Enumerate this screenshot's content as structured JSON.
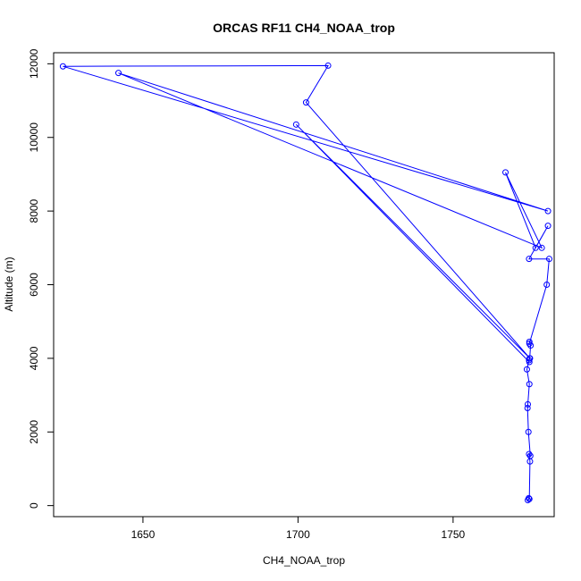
{
  "chart_data": {
    "type": "line",
    "title": "ORCAS RF11 CH4_NOAA_trop",
    "xlabel": "CH4_NOAA_trop",
    "ylabel": "Altitude (m)",
    "xlim": [
      1621.2,
      1782.6
    ],
    "ylim": [
      -300,
      12300
    ],
    "xticks": [
      1650,
      1700,
      1750
    ],
    "yticks": [
      0,
      2000,
      4000,
      6000,
      8000,
      10000,
      12000
    ],
    "grid": false,
    "line_color": "#0000ff",
    "marker": "open-circle",
    "series": [
      {
        "x": [
          1774.4,
          1774.1,
          1774.6,
          1774.8,
          1774.5,
          1774.9,
          1774.3,
          1774.0,
          1774.1,
          1774.6,
          1773.8,
          1774.5,
          1774.7,
          1775.0,
          1774.6,
          1774.6,
          1780.2,
          1781.0,
          1774.5,
          1780.6,
          1776.6,
          1766.9,
          1778.6,
          1642.1,
          1780.6,
          1624.2,
          1709.7,
          1702.6,
          1774.8,
          1699.4,
          1774.6
        ],
        "y": [
          200,
          150,
          180,
          1200,
          1400,
          1350,
          2000,
          2650,
          2750,
          3300,
          3700,
          3950,
          4000,
          4350,
          4450,
          4400,
          6000,
          6700,
          6700,
          7600,
          7000,
          9050,
          7000,
          11750,
          8000,
          11930,
          11950,
          10950,
          4000,
          10350,
          3900
        ]
      }
    ]
  }
}
